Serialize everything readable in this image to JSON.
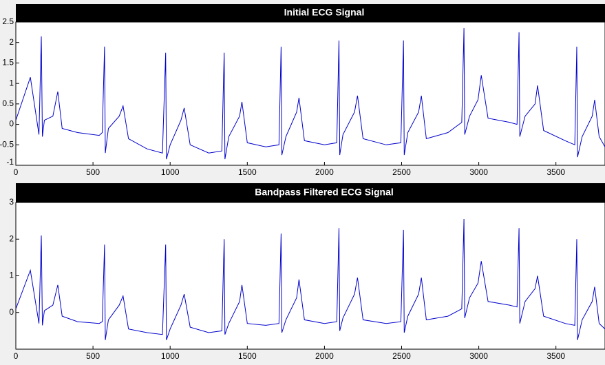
{
  "chart_data": [
    {
      "type": "line",
      "title": "Initial ECG Signal",
      "color": "#0000cc",
      "x": [
        0,
        94,
        150,
        165,
        172,
        185,
        240,
        272,
        300,
        400,
        540,
        560,
        575,
        580,
        600,
        670,
        695,
        730,
        850,
        950,
        971,
        976,
        1000,
        1070,
        1091,
        1130,
        1250,
        1335,
        1350,
        1355,
        1380,
        1450,
        1465,
        1500,
        1620,
        1705,
        1719,
        1724,
        1750,
        1820,
        1835,
        1870,
        2000,
        2080,
        2094,
        2099,
        2120,
        2195,
        2214,
        2250,
        2400,
        2495,
        2512,
        2517,
        2540,
        2610,
        2628,
        2660,
        2800,
        2890,
        2904,
        2909,
        2940,
        2995,
        3016,
        3060,
        3200,
        3248,
        3261,
        3266,
        3300,
        3365,
        3381,
        3420,
        3560,
        3622,
        3635,
        3640,
        3670,
        3735,
        3751,
        3780,
        3818
      ],
      "values": [
        0.1,
        1.15,
        -0.25,
        2.15,
        -0.3,
        0.1,
        0.2,
        0.8,
        -0.1,
        -0.2,
        -0.27,
        -0.2,
        1.9,
        -0.7,
        -0.1,
        0.2,
        0.45,
        -0.35,
        -0.6,
        -0.7,
        1.75,
        -0.85,
        -0.5,
        0.1,
        0.4,
        -0.5,
        -0.7,
        -0.65,
        1.75,
        -0.85,
        -0.3,
        0.2,
        0.55,
        -0.45,
        -0.55,
        -0.5,
        1.9,
        -0.75,
        -0.3,
        0.3,
        0.65,
        -0.4,
        -0.5,
        -0.45,
        2.05,
        -0.75,
        -0.25,
        0.3,
        0.7,
        -0.35,
        -0.5,
        -0.45,
        2.05,
        -0.75,
        -0.2,
        0.3,
        0.7,
        -0.35,
        -0.2,
        0.05,
        2.35,
        -0.25,
        0.2,
        0.6,
        1.2,
        0.15,
        0.05,
        0.0,
        2.25,
        -0.3,
        0.2,
        0.5,
        0.95,
        -0.15,
        -0.4,
        -0.5,
        1.9,
        -0.8,
        -0.3,
        0.2,
        0.6,
        -0.3,
        -0.55
      ],
      "xlim": [
        0,
        3818
      ],
      "xticks": [
        0,
        500,
        1000,
        1500,
        2000,
        2500,
        3000,
        3500
      ],
      "ylim": [
        -1,
        2.5
      ],
      "yticks": [
        -1,
        -0.5,
        0,
        0.5,
        1,
        1.5,
        2,
        2.5
      ]
    },
    {
      "type": "line",
      "title": "Bandpass Filtered ECG Signal",
      "color": "#0000cc",
      "x": [
        0,
        94,
        150,
        165,
        172,
        185,
        240,
        272,
        300,
        400,
        540,
        560,
        575,
        580,
        600,
        670,
        695,
        730,
        850,
        950,
        971,
        976,
        1000,
        1070,
        1091,
        1130,
        1250,
        1335,
        1350,
        1355,
        1380,
        1450,
        1465,
        1500,
        1620,
        1705,
        1719,
        1724,
        1750,
        1820,
        1835,
        1870,
        2000,
        2080,
        2094,
        2099,
        2120,
        2195,
        2214,
        2250,
        2400,
        2495,
        2512,
        2517,
        2540,
        2610,
        2628,
        2660,
        2800,
        2890,
        2904,
        2909,
        2940,
        2995,
        3016,
        3060,
        3200,
        3248,
        3261,
        3266,
        3300,
        3365,
        3381,
        3420,
        3560,
        3622,
        3635,
        3640,
        3670,
        3735,
        3751,
        3780,
        3818
      ],
      "values": [
        0.1,
        1.15,
        -0.3,
        2.1,
        -0.35,
        0.05,
        0.2,
        0.75,
        -0.1,
        -0.25,
        -0.3,
        -0.25,
        1.85,
        -0.75,
        -0.2,
        0.2,
        0.45,
        -0.45,
        -0.55,
        -0.6,
        1.85,
        -0.75,
        -0.45,
        0.2,
        0.5,
        -0.4,
        -0.55,
        -0.5,
        2.0,
        -0.6,
        -0.3,
        0.3,
        0.75,
        -0.3,
        -0.35,
        -0.3,
        2.15,
        -0.55,
        -0.2,
        0.4,
        0.9,
        -0.2,
        -0.3,
        -0.25,
        2.3,
        -0.5,
        -0.15,
        0.5,
        0.95,
        -0.2,
        -0.3,
        -0.25,
        2.25,
        -0.55,
        -0.1,
        0.5,
        0.95,
        -0.2,
        -0.1,
        0.1,
        2.55,
        -0.15,
        0.4,
        0.8,
        1.4,
        0.3,
        0.2,
        0.15,
        2.3,
        -0.3,
        0.3,
        0.65,
        1.0,
        -0.1,
        -0.3,
        -0.35,
        2.0,
        -0.75,
        -0.2,
        0.3,
        0.7,
        -0.3,
        -0.45
      ],
      "xlim": [
        0,
        3818
      ],
      "xticks": [
        0,
        500,
        1000,
        1500,
        2000,
        2500,
        3000,
        3500
      ],
      "ylim": [
        -1,
        3
      ],
      "yticks": [
        0,
        1,
        2,
        3
      ]
    }
  ]
}
